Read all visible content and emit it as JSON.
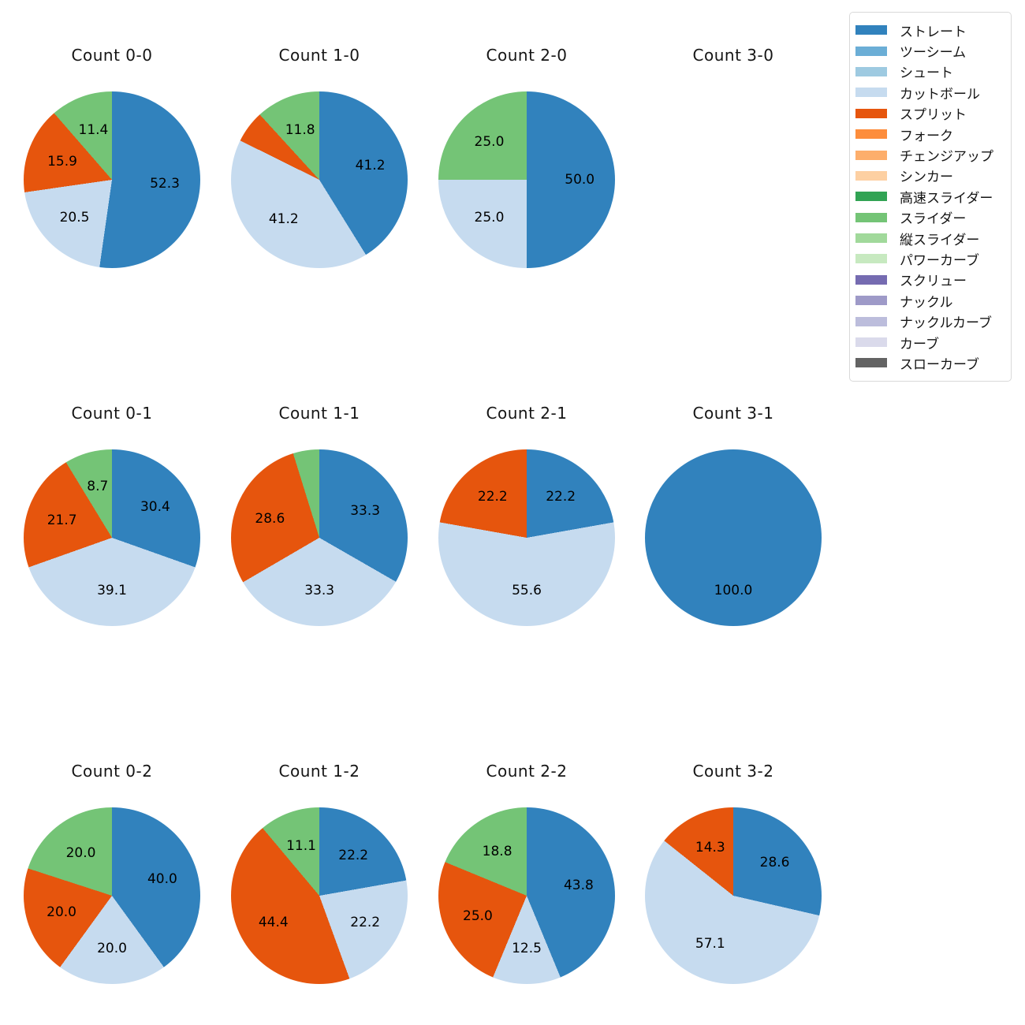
{
  "palette": {
    "ストレート": "#3182bd",
    "ツーシーム": "#6baed6",
    "シュート": "#9ecae1",
    "カットボール": "#c6dbef",
    "スプリット": "#e6550d",
    "フォーク": "#fd8d3c",
    "チェンジアップ": "#fdae6b",
    "シンカー": "#fdd0a2",
    "高速スライダー": "#31a354",
    "スライダー": "#74c476",
    "縦スライダー": "#a1d99b",
    "パワーカーブ": "#c7e9c0",
    "スクリュー": "#756bb1",
    "ナックル": "#9e9ac8",
    "ナックルカーブ": "#bcbddc",
    "カーブ": "#dadaeb",
    "スローカーブ": "#636363"
  },
  "legend": {
    "items": [
      {
        "label": "ストレート",
        "color": "#3182bd"
      },
      {
        "label": "ツーシーム",
        "color": "#6baed6"
      },
      {
        "label": "シュート",
        "color": "#9ecae1"
      },
      {
        "label": "カットボール",
        "color": "#c6dbef"
      },
      {
        "label": "スプリット",
        "color": "#e6550d"
      },
      {
        "label": "フォーク",
        "color": "#fd8d3c"
      },
      {
        "label": "チェンジアップ",
        "color": "#fdae6b"
      },
      {
        "label": "シンカー",
        "color": "#fdd0a2"
      },
      {
        "label": "高速スライダー",
        "color": "#31a354"
      },
      {
        "label": "スライダー",
        "color": "#74c476"
      },
      {
        "label": "縦スライダー",
        "color": "#a1d99b"
      },
      {
        "label": "パワーカーブ",
        "color": "#c7e9c0"
      },
      {
        "label": "スクリュー",
        "color": "#756bb1"
      },
      {
        "label": "ナックル",
        "color": "#9e9ac8"
      },
      {
        "label": "ナックルカーブ",
        "color": "#bcbddc"
      },
      {
        "label": "カーブ",
        "color": "#dadaeb"
      },
      {
        "label": "スローカーブ",
        "color": "#636363"
      }
    ]
  },
  "chart_data": [
    {
      "type": "pie",
      "title": "Count 0-0",
      "start_angle_deg": 0,
      "direction": "clockwise",
      "slices": [
        {
          "name": "ストレート",
          "value": 52.3,
          "label": "52.3"
        },
        {
          "name": "カットボール",
          "value": 20.5,
          "label": "20.5"
        },
        {
          "name": "スプリット",
          "value": 15.9,
          "label": "15.9"
        },
        {
          "name": "スライダー",
          "value": 11.4,
          "label": "11.4"
        }
      ]
    },
    {
      "type": "pie",
      "title": "Count 1-0",
      "start_angle_deg": 0,
      "direction": "clockwise",
      "slices": [
        {
          "name": "ストレート",
          "value": 41.2,
          "label": "41.2"
        },
        {
          "name": "カットボール",
          "value": 41.2,
          "label": "41.2"
        },
        {
          "name": "スプリット",
          "value": 5.9,
          "label": ""
        },
        {
          "name": "スライダー",
          "value": 11.8,
          "label": "11.8"
        }
      ]
    },
    {
      "type": "pie",
      "title": "Count 2-0",
      "start_angle_deg": 0,
      "direction": "clockwise",
      "slices": [
        {
          "name": "ストレート",
          "value": 50.0,
          "label": "50.0"
        },
        {
          "name": "カットボール",
          "value": 25.0,
          "label": "25.0"
        },
        {
          "name": "スライダー",
          "value": 25.0,
          "label": "25.0"
        }
      ]
    },
    {
      "type": "pie",
      "title": "Count 3-0",
      "start_angle_deg": 0,
      "direction": "clockwise",
      "slices": []
    },
    {
      "type": "pie",
      "title": "Count 0-1",
      "start_angle_deg": 0,
      "direction": "clockwise",
      "slices": [
        {
          "name": "ストレート",
          "value": 30.4,
          "label": "30.4"
        },
        {
          "name": "カットボール",
          "value": 39.1,
          "label": "39.1"
        },
        {
          "name": "スプリット",
          "value": 21.7,
          "label": "21.7"
        },
        {
          "name": "スライダー",
          "value": 8.7,
          "label": "8.7"
        }
      ]
    },
    {
      "type": "pie",
      "title": "Count 1-1",
      "start_angle_deg": 0,
      "direction": "clockwise",
      "slices": [
        {
          "name": "ストレート",
          "value": 33.3,
          "label": "33.3"
        },
        {
          "name": "カットボール",
          "value": 33.3,
          "label": "33.3"
        },
        {
          "name": "スプリット",
          "value": 28.6,
          "label": "28.6"
        },
        {
          "name": "スライダー",
          "value": 4.8,
          "label": ""
        }
      ]
    },
    {
      "type": "pie",
      "title": "Count 2-1",
      "start_angle_deg": 0,
      "direction": "clockwise",
      "slices": [
        {
          "name": "ストレート",
          "value": 22.2,
          "label": "22.2"
        },
        {
          "name": "カットボール",
          "value": 55.6,
          "label": "55.6"
        },
        {
          "name": "スプリット",
          "value": 22.2,
          "label": "22.2"
        }
      ]
    },
    {
      "type": "pie",
      "title": "Count 3-1",
      "start_angle_deg": 0,
      "direction": "clockwise",
      "slices": [
        {
          "name": "ストレート",
          "value": 100.0,
          "label": "100.0"
        }
      ]
    },
    {
      "type": "pie",
      "title": "Count 0-2",
      "start_angle_deg": 0,
      "direction": "clockwise",
      "slices": [
        {
          "name": "ストレート",
          "value": 40.0,
          "label": "40.0"
        },
        {
          "name": "カットボール",
          "value": 20.0,
          "label": "20.0"
        },
        {
          "name": "スプリット",
          "value": 20.0,
          "label": "20.0"
        },
        {
          "name": "スライダー",
          "value": 20.0,
          "label": "20.0"
        }
      ]
    },
    {
      "type": "pie",
      "title": "Count 1-2",
      "start_angle_deg": 0,
      "direction": "clockwise",
      "slices": [
        {
          "name": "ストレート",
          "value": 22.2,
          "label": "22.2"
        },
        {
          "name": "カットボール",
          "value": 22.2,
          "label": "22.2"
        },
        {
          "name": "スプリット",
          "value": 44.4,
          "label": "44.4"
        },
        {
          "name": "スライダー",
          "value": 11.1,
          "label": "11.1"
        }
      ]
    },
    {
      "type": "pie",
      "title": "Count 2-2",
      "start_angle_deg": 0,
      "direction": "clockwise",
      "slices": [
        {
          "name": "ストレート",
          "value": 43.8,
          "label": "43.8"
        },
        {
          "name": "カットボール",
          "value": 12.5,
          "label": "12.5"
        },
        {
          "name": "スプリット",
          "value": 25.0,
          "label": "25.0"
        },
        {
          "name": "スライダー",
          "value": 18.8,
          "label": "18.8"
        }
      ]
    },
    {
      "type": "pie",
      "title": "Count 3-2",
      "start_angle_deg": 0,
      "direction": "clockwise",
      "slices": [
        {
          "name": "ストレート",
          "value": 28.6,
          "label": "28.6"
        },
        {
          "name": "カットボール",
          "value": 57.1,
          "label": "57.1"
        },
        {
          "name": "スプリット",
          "value": 14.3,
          "label": "14.3"
        }
      ]
    }
  ]
}
